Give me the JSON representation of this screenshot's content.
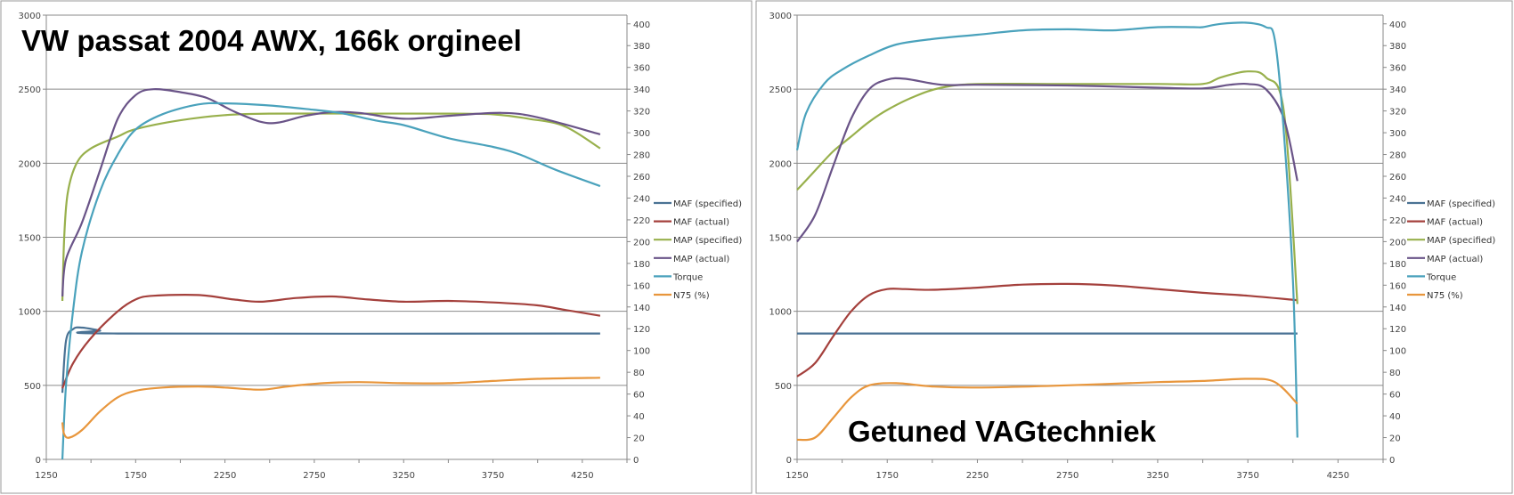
{
  "chart_data": [
    {
      "type": "line",
      "title": "VW passat 2004 AWX, 166k orgineel",
      "xlim": [
        1250,
        4500
      ],
      "ylim": [
        0,
        3000
      ],
      "y2lim": [
        0,
        408
      ],
      "xticks": [
        1250,
        1750,
        2250,
        2750,
        3250,
        3750,
        4250
      ],
      "yticks": [
        0,
        500,
        1000,
        1500,
        2000,
        2500,
        3000
      ],
      "y2ticks": [
        0,
        20,
        40,
        60,
        80,
        100,
        120,
        140,
        160,
        180,
        200,
        220,
        240,
        260,
        280,
        300,
        320,
        340,
        360,
        380,
        400
      ],
      "grid": true,
      "legend_position": "right",
      "series": [
        {
          "name": "MAF (specified)",
          "color": "#4a7294",
          "axis": "primary",
          "points": [
            [
              1340,
              450
            ],
            [
              1360,
              800
            ],
            [
              1400,
              880
            ],
            [
              1450,
              890
            ],
            [
              1550,
              870
            ],
            [
              1650,
              850
            ],
            [
              4350,
              850
            ]
          ]
        },
        {
          "name": "MAF (actual)",
          "color": "#a4403c",
          "axis": "primary",
          "points": [
            [
              1340,
              480
            ],
            [
              1400,
              650
            ],
            [
              1500,
              820
            ],
            [
              1650,
              1000
            ],
            [
              1750,
              1080
            ],
            [
              1850,
              1105
            ],
            [
              2100,
              1110
            ],
            [
              2300,
              1080
            ],
            [
              2450,
              1065
            ],
            [
              2650,
              1090
            ],
            [
              2850,
              1100
            ],
            [
              3050,
              1080
            ],
            [
              3250,
              1065
            ],
            [
              3500,
              1070
            ],
            [
              3750,
              1060
            ],
            [
              4000,
              1040
            ],
            [
              4150,
              1010
            ],
            [
              4350,
              970
            ]
          ]
        },
        {
          "name": "MAP (specified)",
          "color": "#98b04c",
          "axis": "primary",
          "points": [
            [
              1340,
              1070
            ],
            [
              1350,
              1500
            ],
            [
              1370,
              1800
            ],
            [
              1420,
              2000
            ],
            [
              1500,
              2100
            ],
            [
              1650,
              2180
            ],
            [
              1750,
              2230
            ],
            [
              2000,
              2290
            ],
            [
              2250,
              2325
            ],
            [
              2500,
              2335
            ],
            [
              3000,
              2335
            ],
            [
              3500,
              2335
            ],
            [
              3750,
              2330
            ],
            [
              3950,
              2300
            ],
            [
              4150,
              2250
            ],
            [
              4350,
              2100
            ]
          ]
        },
        {
          "name": "MAP (actual)",
          "color": "#6a5488",
          "axis": "primary",
          "points": [
            [
              1340,
              1100
            ],
            [
              1360,
              1350
            ],
            [
              1450,
              1600
            ],
            [
              1550,
              1950
            ],
            [
              1650,
              2300
            ],
            [
              1750,
              2460
            ],
            [
              1850,
              2500
            ],
            [
              2000,
              2480
            ],
            [
              2150,
              2440
            ],
            [
              2300,
              2350
            ],
            [
              2450,
              2280
            ],
            [
              2550,
              2275
            ],
            [
              2700,
              2320
            ],
            [
              2850,
              2345
            ],
            [
              3000,
              2340
            ],
            [
              3250,
              2300
            ],
            [
              3500,
              2320
            ],
            [
              3800,
              2340
            ],
            [
              4000,
              2310
            ],
            [
              4350,
              2195
            ]
          ]
        },
        {
          "name": "Torque",
          "color": "#4aa2bc",
          "axis": "secondary",
          "points": [
            [
              1340,
              0
            ],
            [
              1360,
              68
            ],
            [
              1400,
              137
            ],
            [
              1450,
              191
            ],
            [
              1550,
              246
            ],
            [
              1650,
              280
            ],
            [
              1750,
              303
            ],
            [
              1900,
              317
            ],
            [
              2100,
              326
            ],
            [
              2250,
              327
            ],
            [
              2500,
              325
            ],
            [
              2750,
              321
            ],
            [
              2900,
              318
            ],
            [
              3100,
              311
            ],
            [
              3250,
              307
            ],
            [
              3500,
              295
            ],
            [
              3750,
              287
            ],
            [
              3900,
              280
            ],
            [
              4100,
              266
            ],
            [
              4350,
              251
            ]
          ]
        },
        {
          "name": "N75 (%)",
          "color": "#e8963c",
          "axis": "secondary",
          "points": [
            [
              1340,
              34
            ],
            [
              1350,
              23
            ],
            [
              1380,
              20
            ],
            [
              1450,
              27
            ],
            [
              1550,
              44
            ],
            [
              1650,
              57
            ],
            [
              1750,
              63
            ],
            [
              1900,
              66
            ],
            [
              2100,
              67
            ],
            [
              2250,
              66
            ],
            [
              2450,
              64
            ],
            [
              2600,
              67
            ],
            [
              2800,
              70
            ],
            [
              3000,
              71
            ],
            [
              3250,
              70
            ],
            [
              3500,
              70
            ],
            [
              3750,
              72
            ],
            [
              4000,
              74
            ],
            [
              4350,
              75
            ]
          ]
        }
      ]
    },
    {
      "type": "line",
      "title": "Getuned VAGtechniek",
      "xlim": [
        1250,
        4500
      ],
      "ylim": [
        0,
        3000
      ],
      "y2lim": [
        0,
        408
      ],
      "xticks": [
        1250,
        1750,
        2250,
        2750,
        3250,
        3750,
        4250
      ],
      "yticks": [
        0,
        500,
        1000,
        1500,
        2000,
        2500,
        3000
      ],
      "y2ticks": [
        0,
        20,
        40,
        60,
        80,
        100,
        120,
        140,
        160,
        180,
        200,
        220,
        240,
        260,
        280,
        300,
        320,
        340,
        360,
        380,
        400
      ],
      "grid": true,
      "legend_position": "right",
      "series": [
        {
          "name": "MAF (specified)",
          "color": "#4a7294",
          "axis": "primary",
          "points": [
            [
              1250,
              850
            ],
            [
              4025,
              850
            ]
          ]
        },
        {
          "name": "MAF (actual)",
          "color": "#a4403c",
          "axis": "primary",
          "points": [
            [
              1250,
              560
            ],
            [
              1350,
              650
            ],
            [
              1450,
              830
            ],
            [
              1550,
              1000
            ],
            [
              1650,
              1110
            ],
            [
              1750,
              1150
            ],
            [
              1850,
              1150
            ],
            [
              2000,
              1145
            ],
            [
              2250,
              1160
            ],
            [
              2500,
              1180
            ],
            [
              2750,
              1185
            ],
            [
              3000,
              1175
            ],
            [
              3250,
              1150
            ],
            [
              3500,
              1125
            ],
            [
              3750,
              1105
            ],
            [
              4025,
              1075
            ]
          ]
        },
        {
          "name": "MAP (specified)",
          "color": "#98b04c",
          "axis": "primary",
          "points": [
            [
              1250,
              1820
            ],
            [
              1350,
              1950
            ],
            [
              1450,
              2080
            ],
            [
              1550,
              2180
            ],
            [
              1650,
              2280
            ],
            [
              1750,
              2360
            ],
            [
              1900,
              2450
            ],
            [
              2050,
              2510
            ],
            [
              2250,
              2535
            ],
            [
              2750,
              2535
            ],
            [
              3250,
              2535
            ],
            [
              3500,
              2535
            ],
            [
              3600,
              2580
            ],
            [
              3750,
              2620
            ],
            [
              3850,
              2580
            ],
            [
              3950,
              2350
            ],
            [
              4025,
              1050
            ]
          ]
        },
        {
          "name": "MAP (actual)",
          "color": "#6a5488",
          "axis": "primary",
          "points": [
            [
              1250,
              1470
            ],
            [
              1350,
              1650
            ],
            [
              1450,
              1980
            ],
            [
              1550,
              2300
            ],
            [
              1650,
              2500
            ],
            [
              1750,
              2565
            ],
            [
              1850,
              2570
            ],
            [
              2050,
              2530
            ],
            [
              2250,
              2530
            ],
            [
              2750,
              2525
            ],
            [
              3250,
              2510
            ],
            [
              3500,
              2505
            ],
            [
              3650,
              2530
            ],
            [
              3750,
              2535
            ],
            [
              3850,
              2500
            ],
            [
              3950,
              2300
            ],
            [
              4025,
              1880
            ]
          ]
        },
        {
          "name": "Torque",
          "color": "#4aa2bc",
          "axis": "secondary",
          "points": [
            [
              1250,
              284
            ],
            [
              1300,
              318
            ],
            [
              1400,
              345
            ],
            [
              1500,
              358
            ],
            [
              1650,
              371
            ],
            [
              1800,
              381
            ],
            [
              2000,
              386
            ],
            [
              2250,
              390
            ],
            [
              2500,
              394
            ],
            [
              2750,
              395
            ],
            [
              3000,
              394
            ],
            [
              3250,
              397
            ],
            [
              3450,
              397
            ],
            [
              3500,
              397
            ],
            [
              3600,
              400
            ],
            [
              3750,
              401
            ],
            [
              3850,
              397
            ],
            [
              3900,
              385
            ],
            [
              3950,
              300
            ],
            [
              4000,
              164
            ],
            [
              4025,
              20
            ]
          ]
        },
        {
          "name": "N75 (%)",
          "color": "#e8963c",
          "axis": "secondary",
          "points": [
            [
              1250,
              18
            ],
            [
              1350,
              20
            ],
            [
              1450,
              38
            ],
            [
              1550,
              57
            ],
            [
              1650,
              68
            ],
            [
              1800,
              70
            ],
            [
              2000,
              67
            ],
            [
              2250,
              66
            ],
            [
              2750,
              68
            ],
            [
              3250,
              71
            ],
            [
              3500,
              72
            ],
            [
              3750,
              74
            ],
            [
              3900,
              71
            ],
            [
              4025,
              51
            ]
          ]
        }
      ]
    }
  ]
}
